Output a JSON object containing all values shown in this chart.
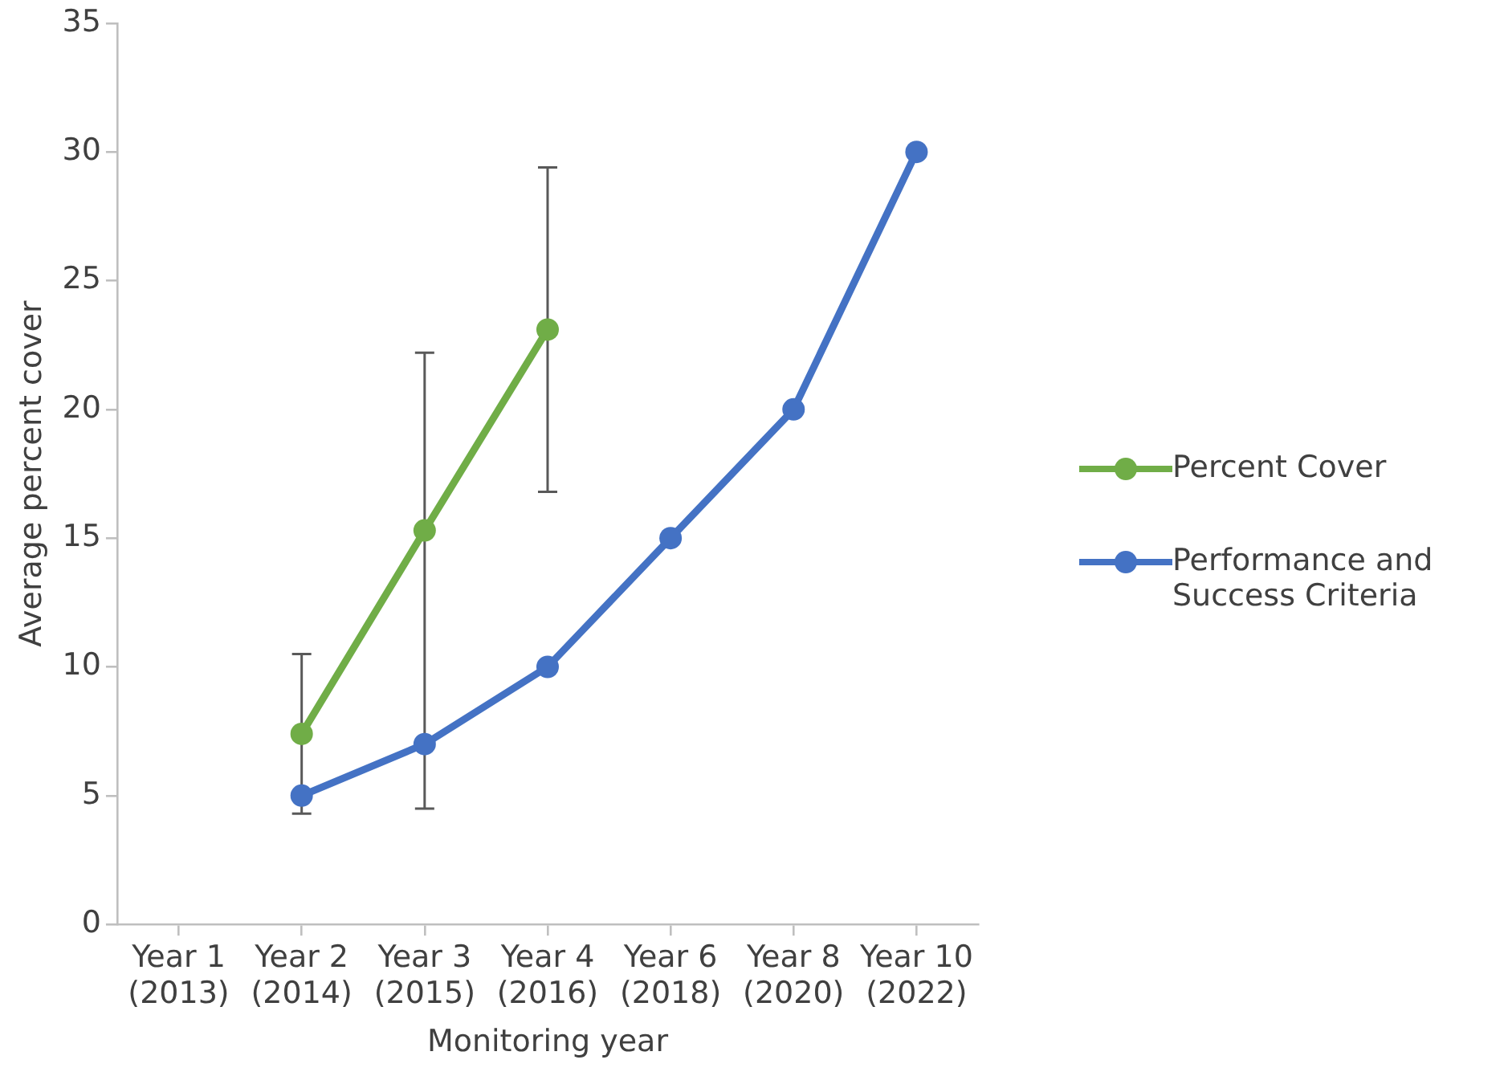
{
  "chart_data": {
    "type": "line",
    "xlabel": "Monitoring year",
    "ylabel": "Average percent cover",
    "categories": [
      "Year 1 (2013)",
      "Year 2 (2014)",
      "Year 3 (2015)",
      "Year 4 (2016)",
      "Year 6 (2018)",
      "Year 8 (2020)",
      "Year 10 (2022)"
    ],
    "series": [
      {
        "name": "Percent Cover",
        "color": "#70ad47",
        "values": [
          null,
          7.4,
          15.3,
          23.1,
          null,
          null,
          null
        ],
        "errors": [
          null,
          [
            4.3,
            10.5
          ],
          [
            4.5,
            22.2
          ],
          [
            16.8,
            29.4
          ],
          null,
          null,
          null
        ]
      },
      {
        "name": "Performance and Success Criteria",
        "color": "#4472c4",
        "values": [
          null,
          5,
          7,
          10,
          15,
          20,
          30
        ]
      }
    ],
    "ylim": [
      0,
      35
    ],
    "yticks": [
      0,
      5,
      10,
      15,
      20,
      25,
      30,
      35
    ],
    "grid": false,
    "legend": "right",
    "marker": "circle",
    "line_style": "solid"
  }
}
